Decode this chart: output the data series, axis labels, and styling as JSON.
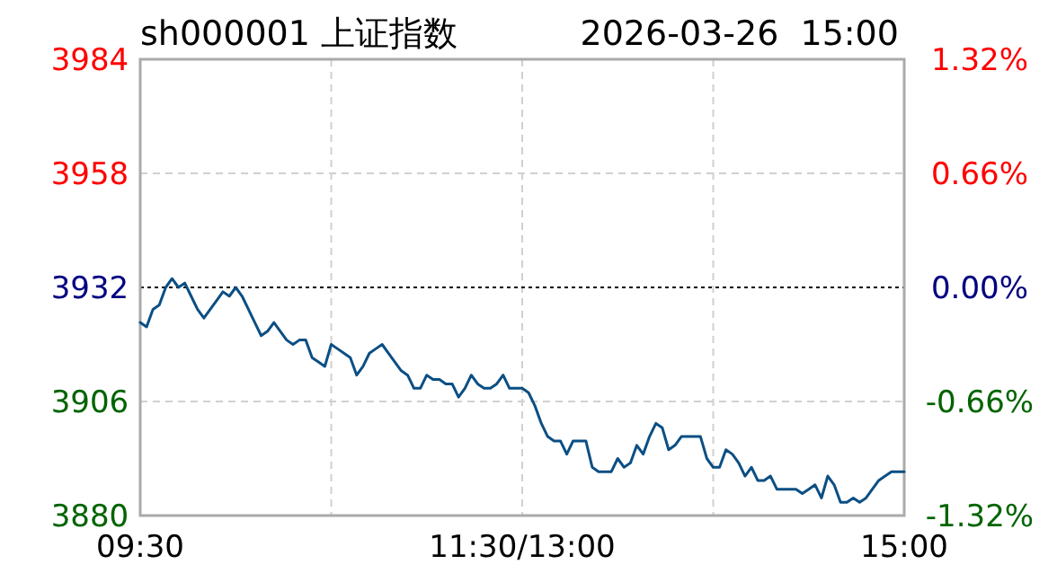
{
  "chart_data": {
    "type": "line",
    "title": "sh000001 上证指数",
    "subtitle": "2026-03-26  15:00",
    "categories": [
      "09:30",
      null,
      null,
      null,
      null,
      null,
      null,
      null,
      null,
      null,
      null,
      null,
      null,
      null,
      null,
      null,
      null,
      null,
      null,
      null,
      null,
      null,
      null,
      null,
      null,
      null,
      null,
      null,
      null,
      null,
      null,
      null,
      null,
      null,
      null,
      null,
      null,
      null,
      null,
      null,
      null,
      null,
      null,
      null,
      null,
      null,
      null,
      null,
      null,
      null,
      null,
      null,
      null,
      null,
      null,
      null,
      null,
      null,
      null,
      null,
      "11:30/13:00",
      null,
      null,
      null,
      null,
      null,
      null,
      null,
      null,
      null,
      null,
      null,
      null,
      null,
      null,
      null,
      null,
      null,
      null,
      null,
      null,
      null,
      null,
      null,
      null,
      null,
      null,
      null,
      null,
      null,
      null,
      null,
      null,
      null,
      null,
      null,
      null,
      null,
      null,
      null,
      null,
      null,
      null,
      null,
      null,
      null,
      null,
      null,
      null,
      null,
      null,
      null,
      null,
      null,
      null,
      null,
      null,
      null,
      null,
      null,
      "15:00"
    ],
    "ylim": [
      3880,
      3984
    ],
    "yticks": [
      3880,
      3906,
      3932,
      3958,
      3984
    ],
    "y2lim": [
      -1.32,
      1.32
    ],
    "y2ticks": [
      {
        "value": -1.32,
        "label": "-1.32%"
      },
      {
        "value": -0.66,
        "label": "-0.66%"
      },
      {
        "value": 0,
        "label": "0.00%"
      },
      {
        "value": 0.66,
        "label": "0.66%"
      },
      {
        "value": 1.32,
        "label": "1.32%"
      }
    ],
    "grid": true,
    "marker": "none",
    "line_style": "solid",
    "ref_lines": [
      {
        "axis": "y",
        "value": 3932,
        "label": null,
        "color": "#000000",
        "line_style": "dotted"
      }
    ],
    "series": [
      {
        "color": "#0b4f84",
        "values": [
          3924,
          3923,
          3927,
          3928,
          3932,
          3934,
          3932,
          3933,
          3930,
          3927,
          3925,
          3927,
          3929,
          3931,
          3930,
          3932,
          3930,
          3927,
          3924,
          3921,
          3922,
          3924,
          3922,
          3920,
          3919,
          3920,
          3920,
          3916,
          3915,
          3914,
          3919,
          3918,
          3917,
          3916,
          3912,
          3914,
          3917,
          3918,
          3919,
          3917,
          3915,
          3913,
          3912,
          3909,
          3909,
          3912,
          3911,
          3911,
          3910,
          3910,
          3907,
          3909,
          3912,
          3910,
          3909,
          3909,
          3910,
          3912,
          3909,
          3909,
          3909,
          3908,
          3905,
          3901,
          3898,
          3897,
          3897,
          3894,
          3897,
          3897,
          3897,
          3891,
          3890,
          3890,
          3890,
          3893,
          3891,
          3892,
          3896,
          3894,
          3898,
          3901,
          3900,
          3895,
          3896,
          3898,
          3898,
          3898,
          3898,
          3893,
          3891,
          3891,
          3895,
          3894,
          3892,
          3889,
          3891,
          3888,
          3888,
          3889,
          3886,
          3886,
          3886,
          3886,
          3885,
          3886,
          3887,
          3884,
          3889,
          3887,
          3883,
          3883,
          3884,
          3883,
          3884,
          3886,
          3888,
          3889,
          3890,
          3890,
          3890
        ]
      }
    ]
  }
}
